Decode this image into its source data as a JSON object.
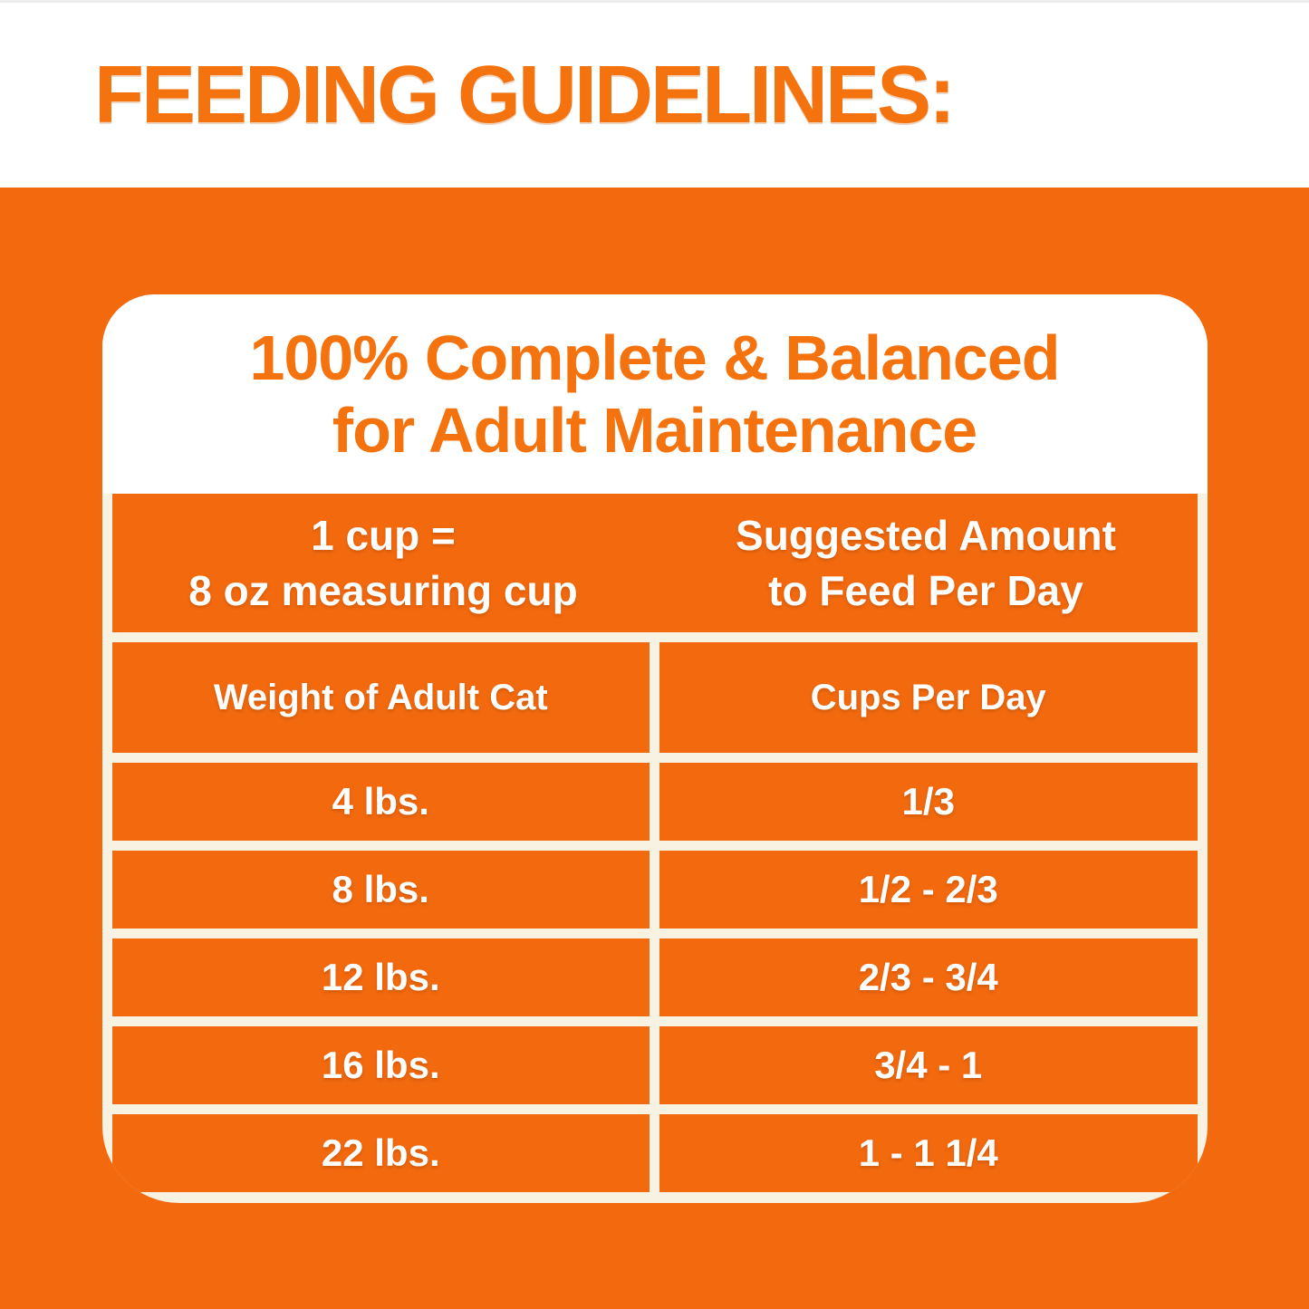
{
  "colors": {
    "orange_background": "#F2690E",
    "orange_text": "#F4730E",
    "cream_lines": "#F8F2E3",
    "table_text": "#FFFFFF"
  },
  "header": {
    "title": "FEEDING GUIDELINES:"
  },
  "card": {
    "heading": {
      "line1": "100% Complete & Balanced",
      "line2": "for Adult Maintenance"
    },
    "measure_header": {
      "left": {
        "line1": "1 cup =",
        "line2": "8 oz measuring cup"
      },
      "right": {
        "line1": "Suggested Amount",
        "line2": "to Feed Per Day"
      }
    },
    "columns": {
      "weight": "Weight of Adult Cat",
      "cups": "Cups Per Day"
    },
    "rows": [
      {
        "weight": "4 lbs.",
        "cups": "1/3"
      },
      {
        "weight": "8 lbs.",
        "cups": "1/2 - 2/3"
      },
      {
        "weight": "12 lbs.",
        "cups": "2/3 - 3/4"
      },
      {
        "weight": "16 lbs.",
        "cups": "3/4 - 1"
      },
      {
        "weight": "22 lbs.",
        "cups": "1 - 1 1/4"
      }
    ]
  },
  "chart_data": {
    "type": "table",
    "title": "100% Complete & Balanced for Adult Maintenance",
    "note": "1 cup = 8 oz measuring cup",
    "columns": [
      "Weight of Adult Cat",
      "Cups Per Day"
    ],
    "rows": [
      [
        "4 lbs.",
        "1/3"
      ],
      [
        "8 lbs.",
        "1/2 - 2/3"
      ],
      [
        "12 lbs.",
        "2/3 - 3/4"
      ],
      [
        "16 lbs.",
        "3/4 - 1"
      ],
      [
        "22 lbs.",
        "1 - 1 1/4"
      ]
    ]
  }
}
